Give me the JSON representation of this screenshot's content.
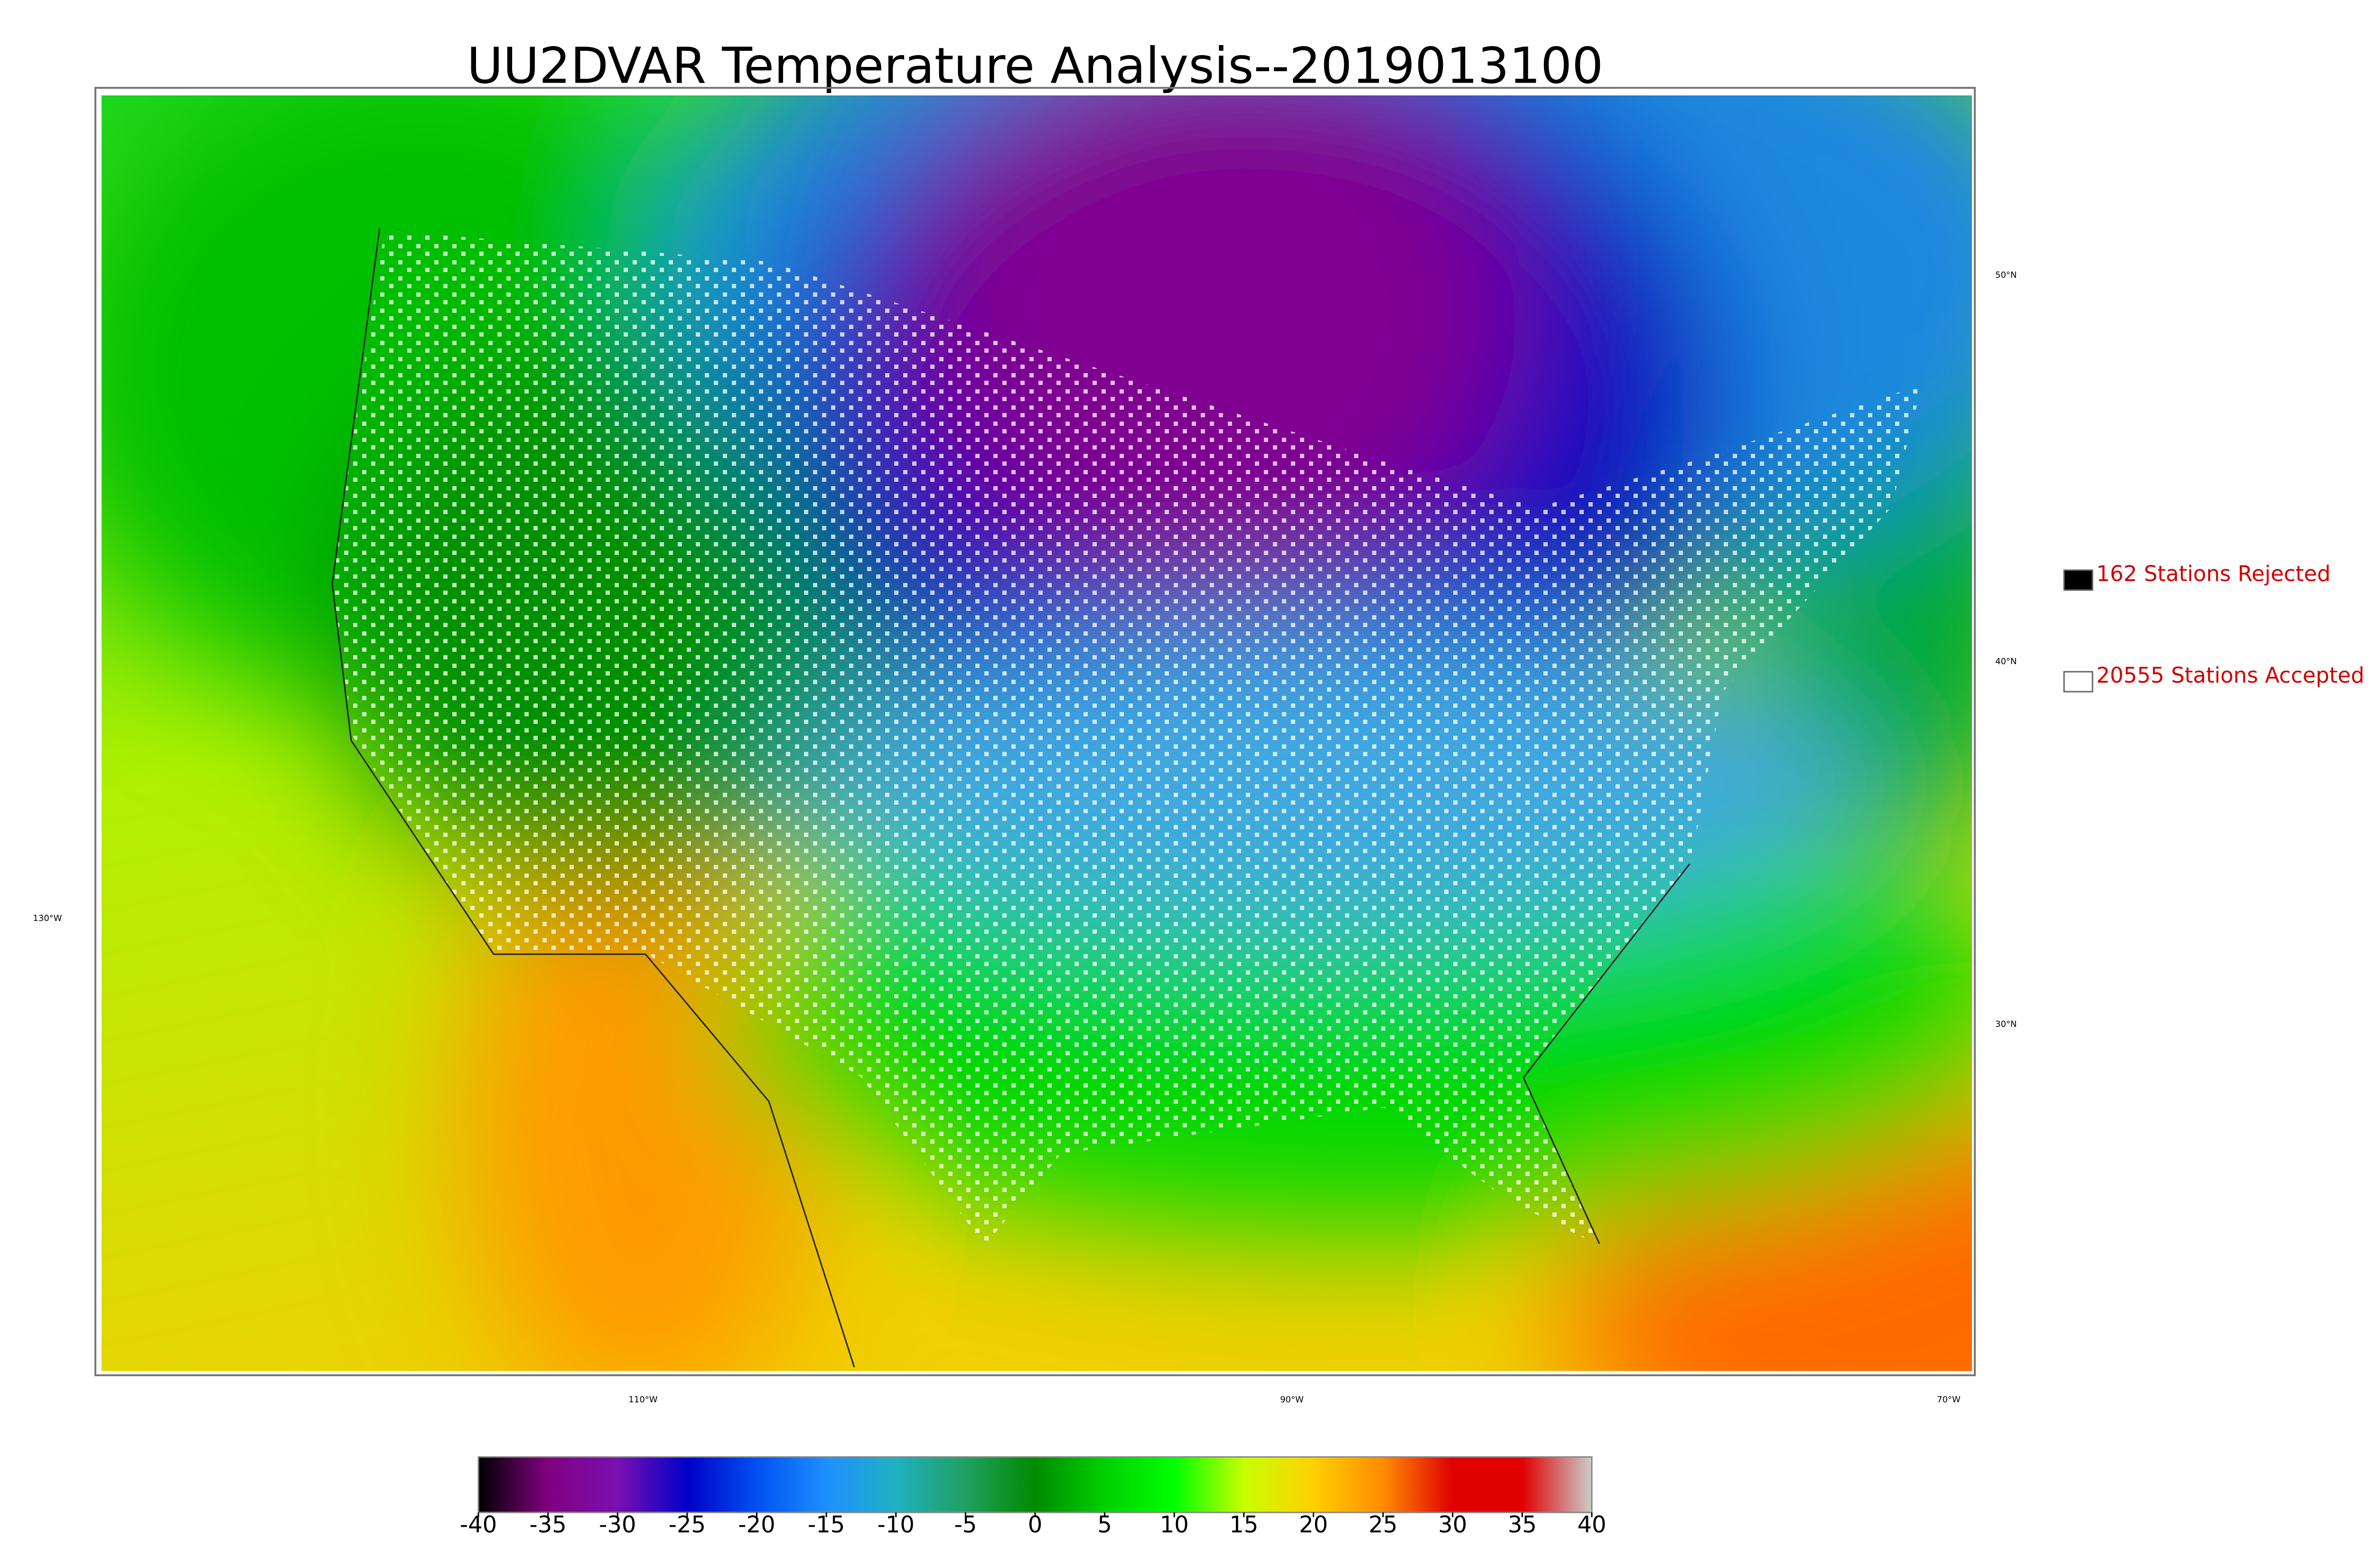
{
  "title": "UU2DVAR Temperature Analysis--2019013100",
  "map": {
    "latitude_labels": [
      "50°N",
      "40°N",
      "30°N"
    ],
    "longitude_labels": [
      "130°W",
      "110°W",
      "90°W",
      "70°W"
    ]
  },
  "legend": [
    {
      "label": "162 Stations Rejected",
      "color": "#000000"
    },
    {
      "label": "20555 Stations Accepted",
      "color": "#ffffff"
    }
  ],
  "colorbar": {
    "range": [
      -40,
      40
    ],
    "ticks": [
      -40,
      -35,
      -30,
      -25,
      -20,
      -15,
      -10,
      -5,
      0,
      5,
      10,
      15,
      20,
      25,
      30,
      35,
      40
    ],
    "colors": [
      "#000000",
      "#800080",
      "#7a10b0",
      "#0000c8",
      "#0050f0",
      "#1e90ff",
      "#20b0c0",
      "#20a060",
      "#008a00",
      "#00d000",
      "#00ff00",
      "#c8ff00",
      "#ffd000",
      "#ff8c00",
      "#e00000",
      "#e00000",
      "#cccccc"
    ]
  }
}
